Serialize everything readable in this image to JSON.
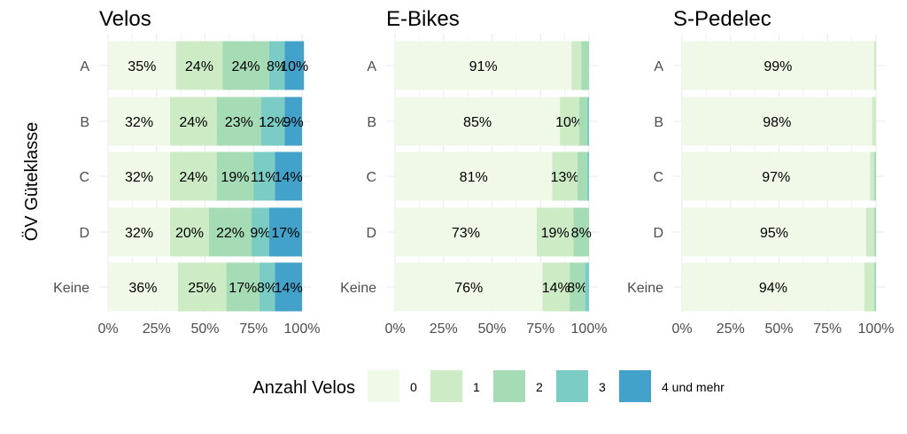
{
  "chart_data": {
    "type": "bar",
    "orientation": "horizontal",
    "stacked": "percent",
    "ylabel": "ÖV Güteklasse",
    "categories": [
      "A",
      "B",
      "C",
      "D",
      "Keine"
    ],
    "x_ticks": [
      "0%",
      "25%",
      "50%",
      "75%",
      "100%"
    ],
    "xlim": [
      0,
      100
    ],
    "legend": {
      "title": "Anzahl Velos",
      "position": "bottom",
      "entries": [
        "0",
        "1",
        "2",
        "3",
        "4 und mehr"
      ]
    },
    "colors": [
      "#f0f9e8",
      "#cdebc5",
      "#a6dcb5",
      "#7bccc4",
      "#43a2ca"
    ],
    "grid": true,
    "panels": [
      {
        "title": "Velos",
        "series": [
          {
            "name": "0",
            "values": [
              35,
              32,
              32,
              32,
              36
            ]
          },
          {
            "name": "1",
            "values": [
              24,
              24,
              24,
              20,
              25
            ]
          },
          {
            "name": "2",
            "values": [
              24,
              23,
              19,
              22,
              17
            ]
          },
          {
            "name": "3",
            "values": [
              8,
              12,
              11,
              9,
              8
            ]
          },
          {
            "name": "4 und mehr",
            "values": [
              10,
              9,
              14,
              17,
              14
            ]
          }
        ],
        "labels": [
          [
            "35%",
            "24%",
            "24%",
            "8%",
            "10%"
          ],
          [
            "32%",
            "24%",
            "23%",
            "12%",
            "9%"
          ],
          [
            "32%",
            "24%",
            "19%",
            "11%",
            "14%"
          ],
          [
            "32%",
            "20%",
            "22%",
            "9%",
            "17%"
          ],
          [
            "36%",
            "25%",
            "17%",
            "8%",
            "14%"
          ]
        ]
      },
      {
        "title": "E-Bikes",
        "series": [
          {
            "name": "0",
            "values": [
              91,
              85,
              81,
              73,
              76
            ]
          },
          {
            "name": "1",
            "values": [
              5,
              10,
              13,
              19,
              14
            ]
          },
          {
            "name": "2",
            "values": [
              4,
              4,
              5,
              8,
              8
            ]
          },
          {
            "name": "3",
            "values": [
              0,
              1,
              1,
              0,
              2
            ]
          },
          {
            "name": "4 und mehr",
            "values": [
              0,
              0,
              0,
              0,
              0
            ]
          }
        ],
        "labels": [
          [
            "91%",
            "",
            "",
            "",
            ""
          ],
          [
            "85%",
            "10%",
            "",
            "",
            ""
          ],
          [
            "81%",
            "13%",
            "",
            "",
            ""
          ],
          [
            "73%",
            "19%",
            "8%",
            "",
            ""
          ],
          [
            "76%",
            "14%",
            "8%",
            "",
            ""
          ]
        ]
      },
      {
        "title": "S-Pedelec",
        "series": [
          {
            "name": "0",
            "values": [
              99,
              98,
              97,
              95,
              94
            ]
          },
          {
            "name": "1",
            "values": [
              1,
              2,
              2,
              4,
              5
            ]
          },
          {
            "name": "2",
            "values": [
              0,
              0,
              1,
              1,
              1
            ]
          },
          {
            "name": "3",
            "values": [
              0,
              0,
              0,
              0,
              0
            ]
          },
          {
            "name": "4 und mehr",
            "values": [
              0,
              0,
              0,
              0,
              0
            ]
          }
        ],
        "labels": [
          [
            "99%",
            "",
            "",
            "",
            ""
          ],
          [
            "98%",
            "",
            "",
            "",
            ""
          ],
          [
            "97%",
            "",
            "",
            "",
            ""
          ],
          [
            "95%",
            "",
            "",
            "",
            ""
          ],
          [
            "94%",
            "",
            "",
            "",
            ""
          ]
        ]
      }
    ]
  }
}
